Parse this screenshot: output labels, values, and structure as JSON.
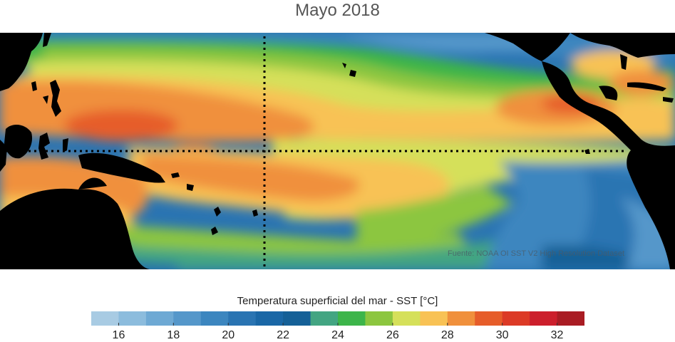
{
  "title": "Mayo 2018",
  "credit": "Fuente: NOAA OI SST V2 High Resolution Dataset",
  "colorbar": {
    "label": "Temperatura superficial del mar - SST  [°C]",
    "min": 15,
    "max": 33,
    "ticks": [
      "16",
      "18",
      "20",
      "22",
      "24",
      "26",
      "28",
      "30",
      "32"
    ],
    "colors": [
      "#a8cbe3",
      "#8cbcdd",
      "#6ea9d4",
      "#5597ca",
      "#3c86bf",
      "#2a74b2",
      "#1a67a6",
      "#156097",
      "#43a582",
      "#3db54a",
      "#8cc63f",
      "#d5e05a",
      "#f8c255",
      "#f0903c",
      "#e65d2a",
      "#dc3a26",
      "#cc1f2c",
      "#a91c23"
    ]
  },
  "colors": {
    "land": "#000000",
    "guide_lines": "#000000"
  }
}
